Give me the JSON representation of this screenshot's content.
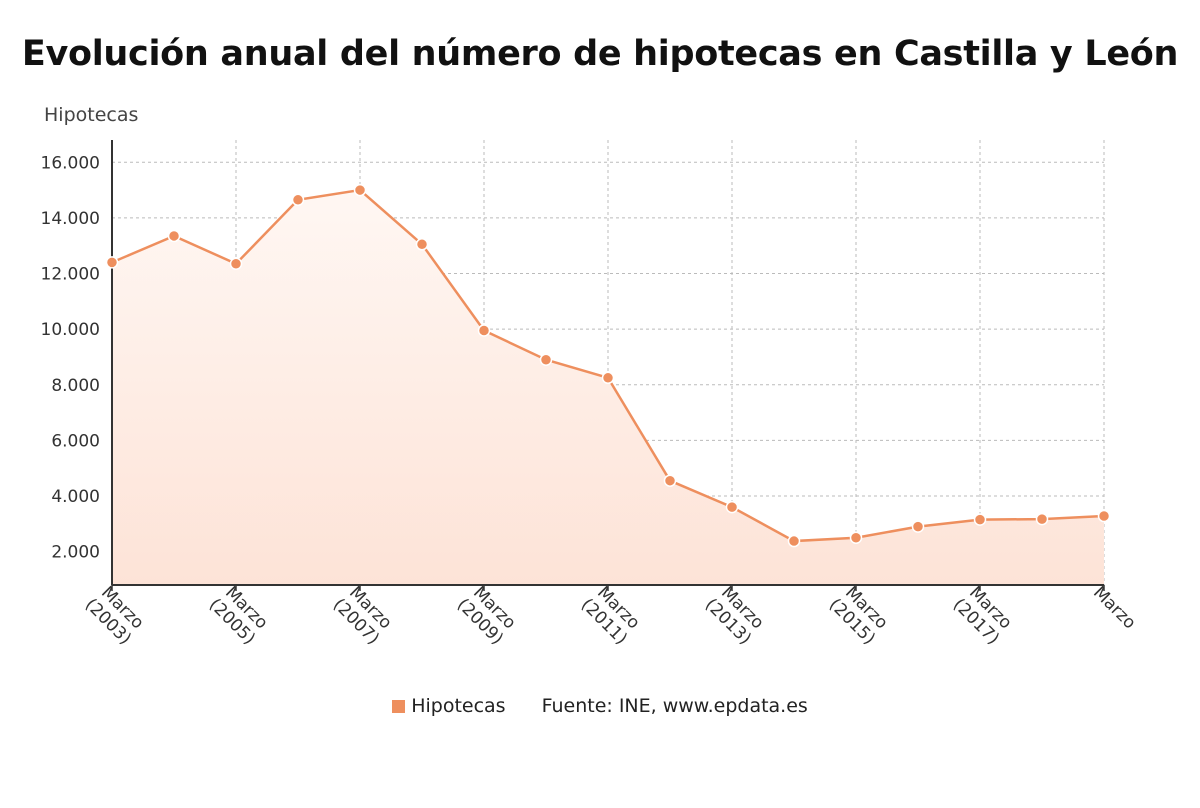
{
  "title": "Evolución anual del número de hipotecas en Castilla y León",
  "legend": {
    "series_name": "Hipotecas",
    "source": "Fuente: INE, www.epdata.es"
  },
  "colors": {
    "line": "#ee8f5e",
    "marker": "#ee8f5e",
    "fill_top": "#fff7f3",
    "fill_bottom": "#fde3d7",
    "grid": "#bbbbbb",
    "axis": "#333333"
  },
  "chart_data": {
    "type": "area",
    "ylabel": "Hipotecas",
    "ylim": [
      800,
      16800
    ],
    "yticks": [
      2000,
      4000,
      6000,
      8000,
      10000,
      12000,
      14000,
      16000
    ],
    "ytick_labels": [
      "2.000",
      "4.000",
      "6.000",
      "8.000",
      "10.000",
      "12.000",
      "14.000",
      "16.000"
    ],
    "x": [
      2003,
      2004,
      2005,
      2006,
      2007,
      2008,
      2009,
      2010,
      2011,
      2012,
      2013,
      2014,
      2015,
      2016,
      2017,
      2018,
      2019
    ],
    "xticks": [
      2003,
      2005,
      2007,
      2009,
      2011,
      2013,
      2015,
      2017,
      2019
    ],
    "xtick_labels": [
      [
        "Marzo",
        "(2003)"
      ],
      [
        "Marzo",
        "(2005)"
      ],
      [
        "Marzo",
        "(2007)"
      ],
      [
        "Marzo",
        "(2009)"
      ],
      [
        "Marzo",
        "(2011)"
      ],
      [
        "Marzo",
        "(2013)"
      ],
      [
        "Marzo",
        "(2015)"
      ],
      [
        "Marzo",
        "(2017)"
      ],
      [
        "Marzo",
        ""
      ]
    ],
    "series": [
      {
        "name": "Hipotecas",
        "values": [
          12400,
          13350,
          12350,
          14650,
          15000,
          13050,
          9950,
          8900,
          8250,
          4550,
          3600,
          2380,
          2500,
          2900,
          3150,
          3170,
          3280
        ]
      }
    ],
    "grid": true,
    "legend_position": "bottom-center"
  }
}
